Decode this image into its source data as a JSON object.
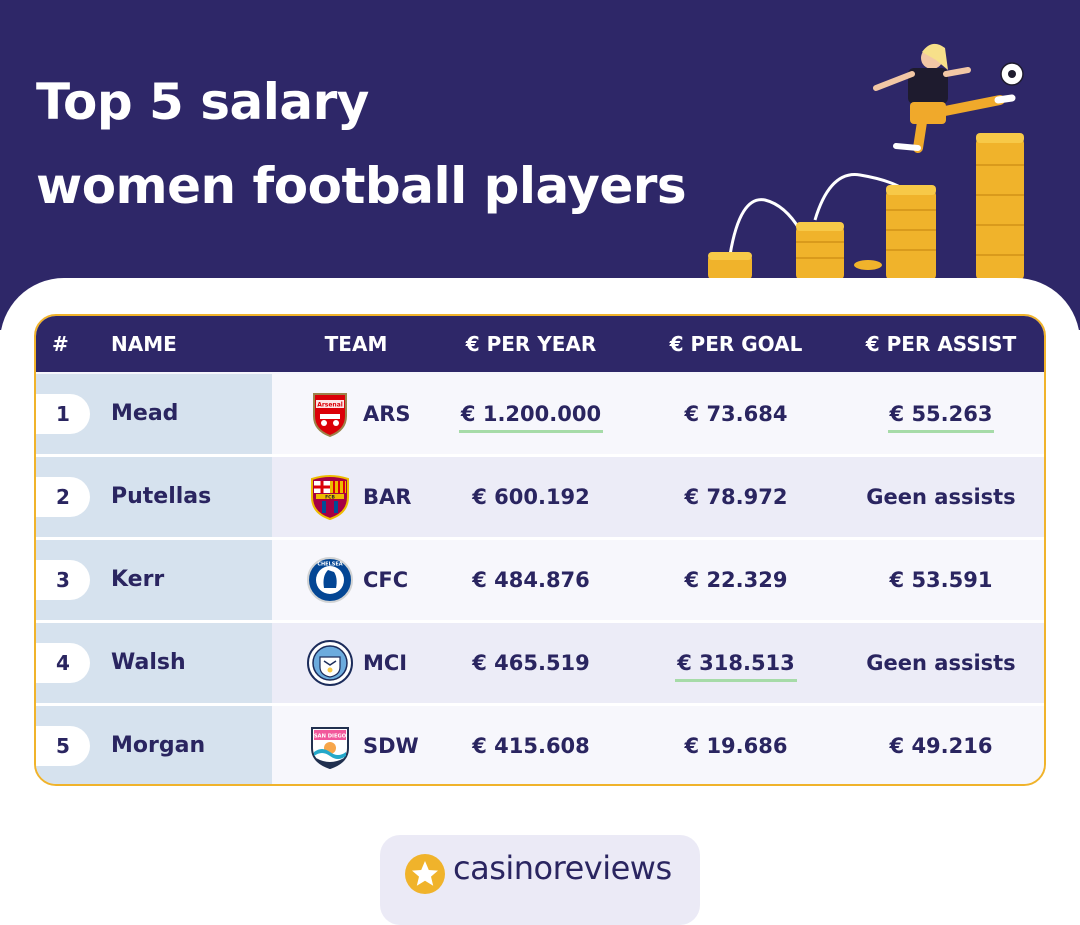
{
  "title": {
    "line1": "Top 5 salary",
    "line2": "women football players"
  },
  "columns": {
    "rank": "#",
    "name": "NAME",
    "team": "TEAM",
    "per_year": "€ PER YEAR",
    "per_goal": "€ PER GOAL",
    "per_assist": "€ PER ASSIST"
  },
  "rows": [
    {
      "rank": "1",
      "name": "Mead",
      "team": "ARS",
      "crest": "arsenal-crest",
      "per_year": "€ 1.200.000",
      "per_goal": "€ 73.684",
      "per_assist": "€ 55.263"
    },
    {
      "rank": "2",
      "name": "Putellas",
      "team": "BAR",
      "crest": "barcelona-crest",
      "per_year": "€ 600.192",
      "per_goal": "€ 78.972",
      "per_assist": "Geen assists"
    },
    {
      "rank": "3",
      "name": "Kerr",
      "team": "CFC",
      "crest": "chelsea-crest",
      "per_year": "€ 484.876",
      "per_goal": "€ 22.329",
      "per_assist": "€ 53.591"
    },
    {
      "rank": "4",
      "name": "Walsh",
      "team": "MCI",
      "crest": "manchester-city-crest",
      "per_year": "€ 465.519",
      "per_goal": "€ 318.513",
      "per_assist": "Geen assists"
    },
    {
      "rank": "5",
      "name": "Morgan",
      "team": "SDW",
      "crest": "san-diego-wave-crest",
      "per_year": "€ 415.608",
      "per_goal": "€ 19.686",
      "per_assist": "€ 49.216"
    }
  ],
  "highlights": {
    "per_year_max_row": 1,
    "per_goal_max_row": 4,
    "per_assist_max_row": 1
  },
  "brand": {
    "name": "casinoreviews",
    "icon": "star-icon"
  },
  "crest_labels": {
    "arsenal": "Arsenal",
    "barcelona": "FCB",
    "chelsea": "CHELSEA",
    "san_diego": "SAN DIEGO"
  },
  "colors": {
    "navy": "#2e2768",
    "gold": "#f0b32b",
    "highlight": "#a6dba8",
    "name_column": "#d6e2ee"
  }
}
